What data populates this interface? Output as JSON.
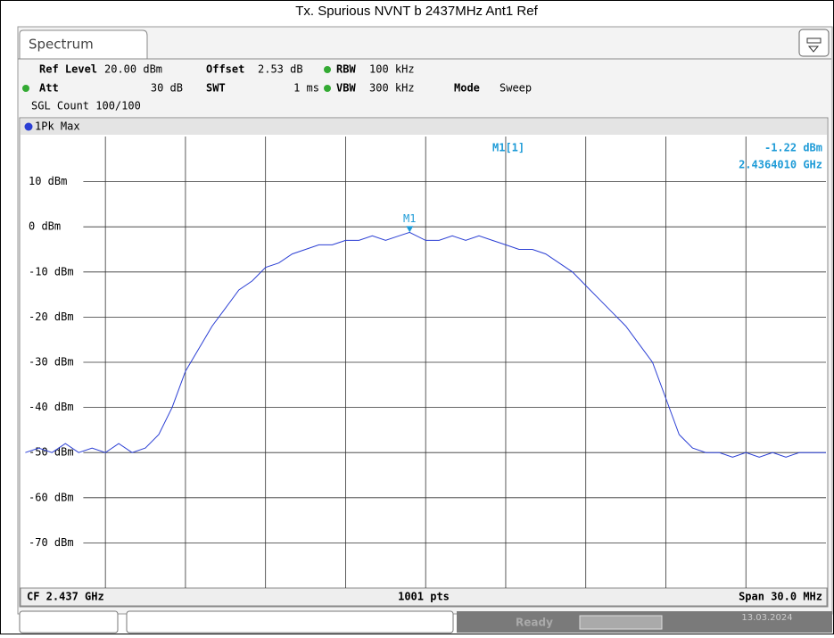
{
  "title": "Tx. Spurious NVNT b 2437MHz Ant1 Ref",
  "tab": "Spectrum",
  "settings": {
    "ref_level_label": "Ref Level",
    "ref_level": "20.00 dBm",
    "offset_label": "Offset",
    "offset": "2.53 dB",
    "rbw_label": "RBW",
    "rbw": "100 kHz",
    "att_label": "Att",
    "att": "30 dB",
    "swt_label": "SWT",
    "swt": "1 ms",
    "vbw_label": "VBW",
    "vbw": "300 kHz",
    "mode_label": "Mode",
    "mode": "Sweep",
    "count": "SGL Count 100/100"
  },
  "footer": {
    "center": "CF 2.437 GHz",
    "points": "1001 pts",
    "span": "Span 30.0 MHz"
  },
  "status": {
    "state": "Ready",
    "date": "13.03.2024"
  },
  "chart_data": {
    "type": "line",
    "xlim": [
      2.422,
      2.452
    ],
    "x_divisions": 10,
    "ylim": [
      -80,
      20
    ],
    "yticks": [
      {
        "value": 10,
        "label": "10 dBm"
      },
      {
        "value": 0,
        "label": "0 dBm"
      },
      {
        "value": -10,
        "label": "-10 dBm"
      },
      {
        "value": -20,
        "label": "-20 dBm"
      },
      {
        "value": -30,
        "label": "-30 dBm"
      },
      {
        "value": -40,
        "label": "-40 dBm"
      },
      {
        "value": -50,
        "label": "-50 dBm"
      },
      {
        "value": -60,
        "label": "-60 dBm"
      },
      {
        "value": -70,
        "label": "-70 dBm"
      }
    ],
    "grid": true,
    "series": [
      {
        "name": "1Pk Max",
        "color": "#2b3fd4",
        "x": [
          2.422,
          2.4225,
          2.423,
          2.4235,
          2.424,
          2.4245,
          2.425,
          2.4255,
          2.426,
          2.4265,
          2.427,
          2.4275,
          2.428,
          2.4285,
          2.429,
          2.4295,
          2.43,
          2.4305,
          2.431,
          2.4315,
          2.432,
          2.4325,
          2.433,
          2.4335,
          2.434,
          2.4345,
          2.435,
          2.4355,
          2.436,
          2.4364,
          2.437,
          2.4375,
          2.438,
          2.4385,
          2.439,
          2.4395,
          2.44,
          2.4405,
          2.441,
          2.4415,
          2.442,
          2.4425,
          2.443,
          2.4435,
          2.444,
          2.4445,
          2.445,
          2.4455,
          2.446,
          2.4465,
          2.447,
          2.4475,
          2.448,
          2.4485,
          2.449,
          2.4495,
          2.45,
          2.4505,
          2.451,
          2.4515,
          2.452
        ],
        "values": [
          -50,
          -49,
          -50,
          -48,
          -50,
          -49,
          -50,
          -48,
          -50,
          -49,
          -46,
          -40,
          -32,
          -27,
          -22,
          -18,
          -14,
          -12,
          -9,
          -8,
          -6,
          -5,
          -4,
          -4,
          -3,
          -3,
          -2,
          -3,
          -2,
          -1.22,
          -3,
          -3,
          -2,
          -3,
          -2,
          -3,
          -4,
          -5,
          -5,
          -6,
          -8,
          -10,
          -13,
          -16,
          -19,
          -22,
          -26,
          -30,
          -38,
          -46,
          -49,
          -50,
          -50,
          -51,
          -50,
          -51,
          -50,
          -51,
          -50,
          -50,
          -50
        ]
      }
    ],
    "marker": {
      "name": "M1",
      "x": 2.436401,
      "y": -1.22,
      "readout": "M1[1]",
      "value_label": "-1.22 dBm",
      "x_label": "2.4364010 GHz",
      "color": "#1e9bd7"
    }
  }
}
